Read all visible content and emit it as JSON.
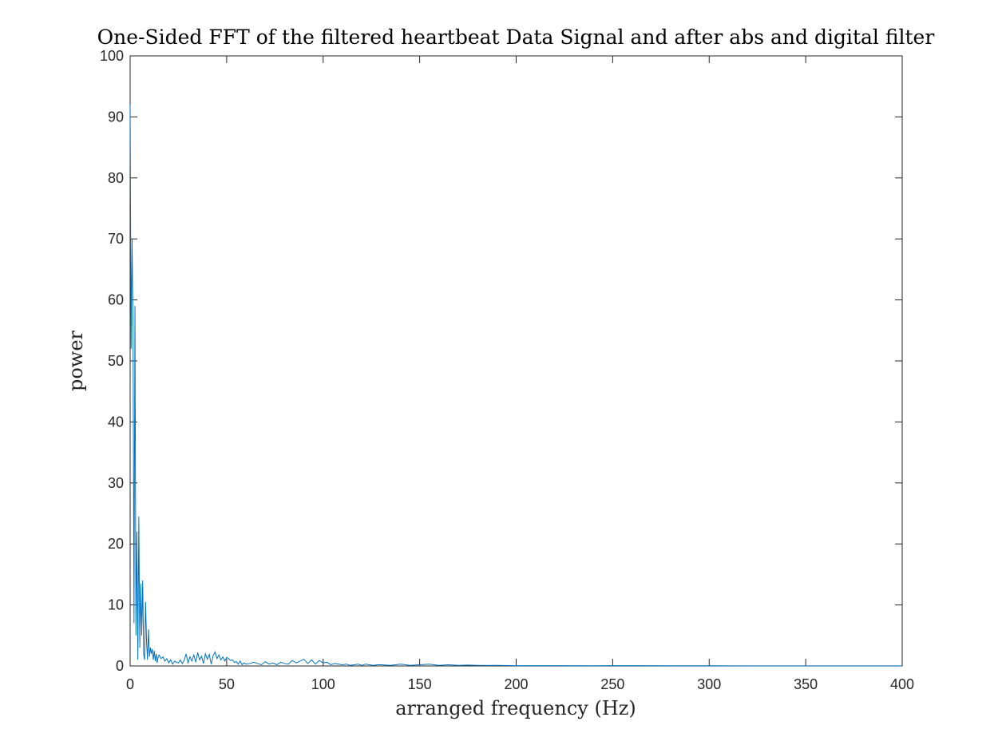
{
  "chart_data": {
    "type": "line",
    "title": "One-Sided FFT of the filtered heartbeat Data Signal and after abs and digital filter",
    "xlabel": "arranged frequency (Hz)",
    "ylabel": "power",
    "xlim": [
      0,
      400
    ],
    "ylim": [
      0,
      100
    ],
    "xticks": [
      0,
      50,
      100,
      150,
      200,
      250,
      300,
      350,
      400
    ],
    "yticks": [
      0,
      10,
      20,
      30,
      40,
      50,
      60,
      70,
      80,
      90,
      100
    ],
    "xtick_labels": [
      "0",
      "50",
      "100",
      "150",
      "200",
      "250",
      "300",
      "350",
      "400"
    ],
    "ytick_labels": [
      "0",
      "10",
      "20",
      "30",
      "40",
      "50",
      "60",
      "70",
      "80",
      "90",
      "100"
    ],
    "grid": false,
    "legend": "none",
    "series": [
      {
        "color": "#0072BD",
        "x": [
          0,
          0.5,
          1.0,
          1.5,
          2.0,
          2.5,
          3.0,
          3.5,
          4.0,
          4.5,
          5.0,
          5.5,
          6.0,
          6.5,
          7.0,
          7.5,
          8.0,
          8.5,
          9.0,
          9.5,
          10.0,
          10.5,
          11.0,
          11.5,
          12.0,
          12.5,
          13.0,
          13.5,
          14.0,
          14.5,
          15.0,
          16,
          17,
          18,
          19,
          20,
          21,
          22,
          23,
          24,
          25,
          26,
          27,
          28,
          29,
          30,
          31,
          32,
          33,
          34,
          35,
          36,
          37,
          38,
          39,
          40,
          41,
          42,
          43,
          44,
          45,
          46,
          47,
          48,
          49,
          50,
          51,
          52,
          53,
          54,
          55,
          56,
          57,
          58,
          59,
          60,
          62,
          64,
          66,
          68,
          70,
          72,
          74,
          76,
          78,
          80,
          82,
          84,
          86,
          88,
          90,
          92,
          94,
          96,
          98,
          100,
          102,
          104,
          106,
          108,
          110,
          112,
          114,
          116,
          118,
          120,
          122,
          124,
          126,
          128,
          130,
          135,
          140,
          145,
          150,
          155,
          160,
          165,
          170,
          175,
          180,
          185,
          190,
          200,
          220,
          240,
          260,
          280,
          300,
          320,
          340,
          360,
          380,
          400
        ],
        "y": [
          92,
          52,
          70,
          55,
          7,
          59,
          5,
          22,
          1,
          24.5,
          3,
          13.5,
          5,
          14,
          2,
          1,
          10.5,
          4,
          1,
          6,
          1.5,
          3,
          2,
          2.8,
          1,
          2.5,
          0.8,
          2,
          0.5,
          1.5,
          1.8,
          1.2,
          1.5,
          0.8,
          1.2,
          0.5,
          1.0,
          0.3,
          0.8,
          0.6,
          0.5,
          1.0,
          0.4,
          0.9,
          2.0,
          0.5,
          1.5,
          0.8,
          1.8,
          0.6,
          2.2,
          1.0,
          1.6,
          0.4,
          2.0,
          1.1,
          1.9,
          0.3,
          1.7,
          2.3,
          1.2,
          1.8,
          1.0,
          1.5,
          0.8,
          1.4,
          1.2,
          0.9,
          1.0,
          0.6,
          0.7,
          0.3,
          0.8,
          0.2,
          0.5,
          0.3,
          0.4,
          0.6,
          0.4,
          0.2,
          0.7,
          0.3,
          0.5,
          0.2,
          0.6,
          0.4,
          0.3,
          0.9,
          0.5,
          0.8,
          1.1,
          0.4,
          1.0,
          0.3,
          0.9,
          0.5,
          0.6,
          0.2,
          0.4,
          0.3,
          0.2,
          0.3,
          0.1,
          0.2,
          0.3,
          0.1,
          0.3,
          0.2,
          0.1,
          0.2,
          0.2,
          0.1,
          0.3,
          0.1,
          0.2,
          0.3,
          0.1,
          0.2,
          0.1,
          0.15,
          0.1,
          0.08,
          0.1,
          0.05,
          0.05,
          0.04,
          0.05,
          0.03,
          0.03,
          0.02,
          0.02,
          0.02,
          0.02,
          0.02
        ]
      }
    ]
  }
}
